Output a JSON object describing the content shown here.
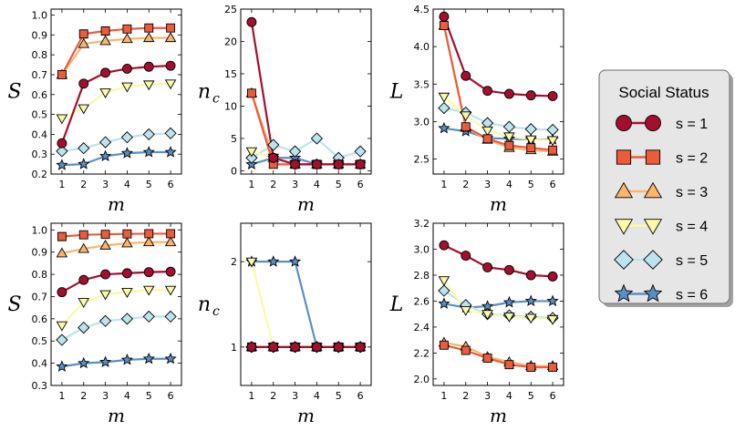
{
  "colors": {
    "s1": "#a50f2f",
    "s2": "#ea5c3c",
    "s3": "#fab56f",
    "s4": "#fafaa8",
    "s5": "#bde4ee",
    "s6": "#5b8fc4"
  },
  "legend": {
    "title": "Social Status",
    "entries": [
      {
        "label": "s = 1",
        "marker": "circle",
        "color_key": "s1"
      },
      {
        "label": "s = 2",
        "marker": "square",
        "color_key": "s2"
      },
      {
        "label": "s = 3",
        "marker": "triangle-up",
        "color_key": "s3"
      },
      {
        "label": "s = 4",
        "marker": "triangle-down",
        "color_key": "s4"
      },
      {
        "label": "s = 5",
        "marker": "diamond",
        "color_key": "s5"
      },
      {
        "label": "s = 6",
        "marker": "star",
        "color_key": "s6"
      }
    ]
  },
  "chart_data": [
    {
      "id": "top-S",
      "type": "line",
      "xlabel": "m",
      "ylabel": "S",
      "ylabel_sub": "",
      "x": [
        1,
        2,
        3,
        4,
        5,
        6
      ],
      "xlim": [
        0.5,
        6.5
      ],
      "ylim": [
        0.2,
        1.03
      ],
      "yticks": [
        0.2,
        0.3,
        0.4,
        0.5,
        0.6,
        0.7,
        0.8,
        0.9,
        1.0
      ],
      "ytick_labels": [
        "0.2",
        "0.3",
        "0.4",
        "0.5",
        "0.6",
        "0.7",
        "0.8",
        "0.9",
        "1.0"
      ],
      "xticks": [
        1,
        2,
        3,
        4,
        5,
        6
      ],
      "series": [
        {
          "name": "s = 1",
          "values": [
            0.355,
            0.655,
            0.71,
            0.73,
            0.74,
            0.745
          ]
        },
        {
          "name": "s = 2",
          "values": [
            0.7,
            0.905,
            0.92,
            0.93,
            0.935,
            0.935
          ]
        },
        {
          "name": "s = 3",
          "values": [
            0.7,
            0.855,
            0.87,
            0.88,
            0.885,
            0.885
          ]
        },
        {
          "name": "s = 4",
          "values": [
            0.48,
            0.53,
            0.61,
            0.64,
            0.65,
            0.655
          ]
        },
        {
          "name": "s = 5",
          "values": [
            0.315,
            0.33,
            0.36,
            0.385,
            0.4,
            0.405
          ]
        },
        {
          "name": "s = 6",
          "values": [
            0.245,
            0.25,
            0.29,
            0.305,
            0.31,
            0.31
          ]
        }
      ]
    },
    {
      "id": "top-nc",
      "type": "line",
      "xlabel": "m",
      "ylabel": "n",
      "ylabel_sub": "c",
      "x": [
        1,
        2,
        3,
        4,
        5,
        6
      ],
      "xlim": [
        0.5,
        6.5
      ],
      "ylim": [
        -0.5,
        25
      ],
      "yticks": [
        0,
        5,
        10,
        15,
        20,
        25
      ],
      "ytick_labels": [
        "0",
        "5",
        "10",
        "15",
        "20",
        "25"
      ],
      "xticks": [
        1,
        2,
        3,
        4,
        5,
        6
      ],
      "series": [
        {
          "name": "s = 1",
          "values": [
            23,
            2,
            1,
            1,
            1,
            1
          ]
        },
        {
          "name": "s = 2",
          "values": [
            12,
            1,
            1,
            1,
            1,
            1
          ]
        },
        {
          "name": "s = 3",
          "values": [
            12,
            2,
            1,
            1,
            1,
            1
          ]
        },
        {
          "name": "s = 4",
          "values": [
            3,
            2,
            1,
            1,
            1,
            1
          ]
        },
        {
          "name": "s = 5",
          "values": [
            2,
            4,
            3,
            5,
            2,
            3
          ]
        },
        {
          "name": "s = 6",
          "values": [
            1,
            2,
            2,
            1,
            1,
            1
          ]
        }
      ]
    },
    {
      "id": "top-L",
      "type": "line",
      "xlabel": "m",
      "ylabel": "L",
      "ylabel_sub": "",
      "x": [
        1,
        2,
        3,
        4,
        5,
        6
      ],
      "xlim": [
        0.5,
        6.5
      ],
      "ylim": [
        2.3,
        4.5
      ],
      "yticks": [
        2.5,
        3.0,
        3.5,
        4.0,
        4.5
      ],
      "ytick_labels": [
        "2.5",
        "3.0",
        "3.5",
        "4.0",
        "4.5"
      ],
      "xticks": [
        1,
        2,
        3,
        4,
        5,
        6
      ],
      "series": [
        {
          "name": "s = 1",
          "values": [
            4.4,
            3.61,
            3.41,
            3.37,
            3.35,
            3.34
          ]
        },
        {
          "name": "s = 2",
          "values": [
            4.28,
            2.93,
            2.77,
            2.68,
            2.65,
            2.62
          ]
        },
        {
          "name": "s = 3",
          "values": [
            4.28,
            2.92,
            2.76,
            2.65,
            2.62,
            2.6
          ]
        },
        {
          "name": "s = 4",
          "values": [
            3.33,
            3.08,
            2.88,
            2.8,
            2.76,
            2.75
          ]
        },
        {
          "name": "s = 5",
          "values": [
            3.18,
            3.12,
            2.98,
            2.93,
            2.9,
            2.89
          ]
        },
        {
          "name": "s = 6",
          "values": [
            2.91,
            2.87,
            2.78,
            2.77,
            2.76,
            2.76
          ]
        }
      ]
    },
    {
      "id": "bottom-S",
      "type": "line",
      "xlabel": "m",
      "ylabel": "S",
      "ylabel_sub": "",
      "x": [
        1,
        2,
        3,
        4,
        5,
        6
      ],
      "xlim": [
        0.5,
        6.5
      ],
      "ylim": [
        0.3,
        1.03
      ],
      "yticks": [
        0.3,
        0.4,
        0.5,
        0.6,
        0.7,
        0.8,
        0.9,
        1.0
      ],
      "ytick_labels": [
        "0.3",
        "0.4",
        "0.5",
        "0.6",
        "0.7",
        "0.8",
        "0.9",
        "1.0"
      ],
      "xticks": [
        1,
        2,
        3,
        4,
        5,
        6
      ],
      "series": [
        {
          "name": "s = 1",
          "values": [
            0.72,
            0.775,
            0.8,
            0.805,
            0.81,
            0.812
          ]
        },
        {
          "name": "s = 2",
          "values": [
            0.97,
            0.978,
            0.98,
            0.982,
            0.983,
            0.983
          ]
        },
        {
          "name": "s = 3",
          "values": [
            0.895,
            0.915,
            0.93,
            0.94,
            0.945,
            0.945
          ]
        },
        {
          "name": "s = 4",
          "values": [
            0.57,
            0.675,
            0.71,
            0.72,
            0.73,
            0.73
          ]
        },
        {
          "name": "s = 5",
          "values": [
            0.505,
            0.56,
            0.59,
            0.6,
            0.61,
            0.61
          ]
        },
        {
          "name": "s = 6",
          "values": [
            0.385,
            0.4,
            0.405,
            0.415,
            0.42,
            0.42
          ]
        }
      ]
    },
    {
      "id": "bottom-nc",
      "type": "line",
      "xlabel": "m",
      "ylabel": "n",
      "ylabel_sub": "c",
      "x": [
        1,
        2,
        3,
        4,
        5,
        6
      ],
      "xlim": [
        0.5,
        6.5
      ],
      "ylim": [
        0.55,
        2.45
      ],
      "yticks": [
        1,
        2
      ],
      "ytick_labels": [
        "1",
        "2"
      ],
      "xticks": [
        1,
        2,
        3,
        4,
        5,
        6
      ],
      "series": [
        {
          "name": "s = 1",
          "values": [
            1,
            1,
            1,
            1,
            1,
            1
          ]
        },
        {
          "name": "s = 2",
          "values": [
            1,
            1,
            1,
            1,
            1,
            1
          ]
        },
        {
          "name": "s = 3",
          "values": [
            1,
            1,
            1,
            1,
            1,
            1
          ]
        },
        {
          "name": "s = 4",
          "values": [
            2,
            1,
            1,
            1,
            1,
            1
          ]
        },
        {
          "name": "s = 5",
          "values": [
            1,
            1,
            1,
            1,
            1,
            1
          ]
        },
        {
          "name": "s = 6",
          "values": [
            2,
            2,
            2,
            1,
            1,
            1
          ]
        }
      ]
    },
    {
      "id": "bottom-L",
      "type": "line",
      "xlabel": "m",
      "ylabel": "L",
      "ylabel_sub": "",
      "x": [
        1,
        2,
        3,
        4,
        5,
        6
      ],
      "xlim": [
        0.5,
        6.5
      ],
      "ylim": [
        1.95,
        3.2
      ],
      "yticks": [
        2.0,
        2.2,
        2.4,
        2.6,
        2.8,
        3.0,
        3.2
      ],
      "ytick_labels": [
        "2.0",
        "2.2",
        "2.4",
        "2.6",
        "2.8",
        "3.0",
        "3.2"
      ],
      "xticks": [
        1,
        2,
        3,
        4,
        5,
        6
      ],
      "series": [
        {
          "name": "s = 1",
          "values": [
            3.03,
            2.95,
            2.86,
            2.84,
            2.8,
            2.79
          ]
        },
        {
          "name": "s = 2",
          "values": [
            2.26,
            2.22,
            2.16,
            2.11,
            2.09,
            2.09
          ]
        },
        {
          "name": "s = 3",
          "values": [
            2.28,
            2.25,
            2.17,
            2.13,
            2.1,
            2.1
          ]
        },
        {
          "name": "s = 4",
          "values": [
            2.76,
            2.53,
            2.5,
            2.48,
            2.47,
            2.46
          ]
        },
        {
          "name": "s = 5",
          "values": [
            2.68,
            2.57,
            2.5,
            2.49,
            2.48,
            2.47
          ]
        },
        {
          "name": "s = 6",
          "values": [
            2.58,
            2.55,
            2.56,
            2.59,
            2.6,
            2.6
          ]
        }
      ]
    }
  ]
}
